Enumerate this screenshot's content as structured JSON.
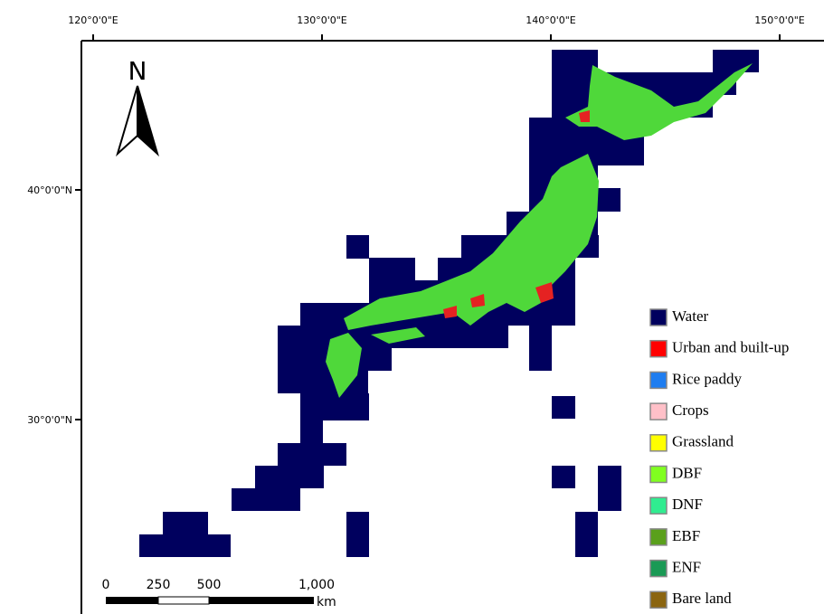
{
  "top_labels": [
    "120°0'0\"E",
    "130°0'0\"E",
    "140°0'0\"E",
    "150°0'0\"E"
  ],
  "left_labels": [
    "40°0'0\"N",
    "30°0'0\"N"
  ],
  "north": "N",
  "scale": {
    "labels": [
      "0",
      "250",
      "500",
      "1,000"
    ],
    "unit": "km"
  },
  "legend": [
    {
      "name": "Water",
      "color": "#00005e"
    },
    {
      "name": "Urban and built-up",
      "color": "#ff0000"
    },
    {
      "name": "Rice paddy",
      "color": "#1e7df0"
    },
    {
      "name": "Crops",
      "color": "#ffc0c8"
    },
    {
      "name": "Grassland",
      "color": "#ffff00"
    },
    {
      "name": "DBF",
      "color": "#80ff20"
    },
    {
      "name": "DNF",
      "color": "#30ec90"
    },
    {
      "name": "EBF",
      "color": "#5aa01c"
    },
    {
      "name": "ENF",
      "color": "#1a9a55"
    },
    {
      "name": "Bare land",
      "color": "#8b6510"
    }
  ]
}
